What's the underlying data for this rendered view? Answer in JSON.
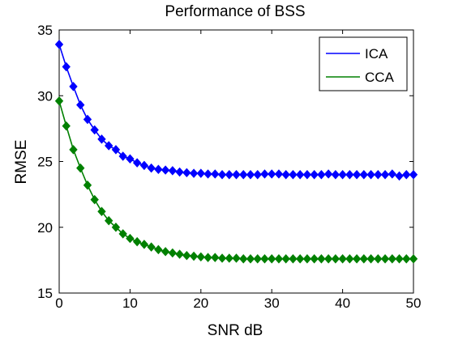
{
  "chart_data": {
    "type": "line",
    "title": "Performance of BSS",
    "xlabel": "SNR dB",
    "ylabel": "RMSE",
    "xlim": [
      0,
      50
    ],
    "ylim": [
      15,
      35
    ],
    "x_ticks": [
      0,
      10,
      20,
      30,
      40,
      50
    ],
    "y_ticks": [
      15,
      20,
      25,
      30,
      35
    ],
    "grid": false,
    "legend_position": "top-right",
    "x": [
      0,
      1,
      2,
      3,
      4,
      5,
      6,
      7,
      8,
      9,
      10,
      11,
      12,
      13,
      14,
      15,
      16,
      17,
      18,
      19,
      20,
      21,
      22,
      23,
      24,
      25,
      26,
      27,
      28,
      29,
      30,
      31,
      32,
      33,
      34,
      35,
      36,
      37,
      38,
      39,
      40,
      41,
      42,
      43,
      44,
      45,
      46,
      47,
      48,
      49,
      50
    ],
    "series": [
      {
        "name": "ICA",
        "color": "#0000ff",
        "marker": "diamond",
        "values": [
          33.9,
          32.2,
          30.7,
          29.3,
          28.2,
          27.4,
          26.7,
          26.2,
          25.9,
          25.4,
          25.2,
          24.9,
          24.7,
          24.5,
          24.4,
          24.35,
          24.3,
          24.2,
          24.15,
          24.1,
          24.1,
          24.05,
          24.05,
          24.0,
          24.0,
          24.0,
          24.0,
          24.0,
          24.0,
          24.05,
          24.05,
          24.05,
          24.0,
          24.0,
          24.0,
          24.0,
          24.0,
          24.0,
          24.05,
          24.0,
          24.0,
          24.0,
          24.0,
          24.0,
          24.0,
          24.0,
          24.0,
          24.05,
          23.9,
          24.0,
          24.0
        ]
      },
      {
        "name": "CCA",
        "color": "#008000",
        "marker": "diamond",
        "values": [
          29.6,
          27.7,
          25.9,
          24.5,
          23.2,
          22.1,
          21.2,
          20.5,
          20.0,
          19.5,
          19.15,
          18.9,
          18.7,
          18.5,
          18.3,
          18.15,
          18.05,
          17.95,
          17.85,
          17.8,
          17.75,
          17.7,
          17.7,
          17.65,
          17.65,
          17.65,
          17.6,
          17.6,
          17.6,
          17.6,
          17.6,
          17.6,
          17.6,
          17.6,
          17.6,
          17.6,
          17.6,
          17.6,
          17.6,
          17.6,
          17.6,
          17.6,
          17.6,
          17.6,
          17.6,
          17.6,
          17.6,
          17.6,
          17.6,
          17.6,
          17.6
        ]
      }
    ]
  }
}
